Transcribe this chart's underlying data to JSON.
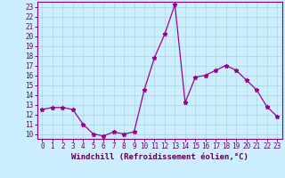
{
  "x": [
    0,
    1,
    2,
    3,
    4,
    5,
    6,
    7,
    8,
    9,
    10,
    11,
    12,
    13,
    14,
    15,
    16,
    17,
    18,
    19,
    20,
    21,
    22,
    23
  ],
  "y": [
    12.5,
    12.7,
    12.7,
    12.5,
    11.0,
    10.0,
    9.8,
    10.2,
    10.0,
    10.2,
    14.5,
    17.8,
    20.2,
    23.2,
    13.2,
    15.8,
    16.0,
    16.5,
    17.0,
    16.5,
    15.5,
    14.5,
    12.8,
    11.8
  ],
  "line_color": "#990099",
  "marker": "*",
  "marker_size": 3.5,
  "bg_color": "#cceeff",
  "grid_color": "#aadddd",
  "xlabel": "Windchill (Refroidissement éolien,°C)",
  "xlabel_fontsize": 6.5,
  "tick_fontsize": 5.5,
  "ylim": [
    9.5,
    23.5
  ],
  "xlim": [
    -0.5,
    23.5
  ],
  "yticks": [
    10,
    11,
    12,
    13,
    14,
    15,
    16,
    17,
    18,
    19,
    20,
    21,
    22,
    23
  ],
  "xticks": [
    0,
    1,
    2,
    3,
    4,
    5,
    6,
    7,
    8,
    9,
    10,
    11,
    12,
    13,
    14,
    15,
    16,
    17,
    18,
    19,
    20,
    21,
    22,
    23
  ]
}
